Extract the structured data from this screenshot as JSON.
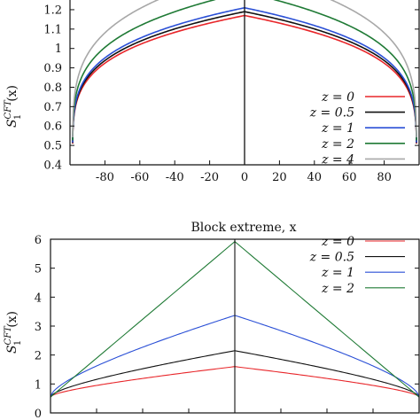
{
  "chart_data": [
    {
      "type": "line",
      "ylabel": {
        "base": "S",
        "sub": "1",
        "sup": "CFT",
        "arg": "(x)"
      },
      "xlabel": "Block extreme, x",
      "x_ticks": [
        -80,
        -60,
        -40,
        -20,
        0,
        20,
        40,
        60,
        80
      ],
      "y_ticks": [
        "0.4",
        "0.5",
        "0.6",
        "0.7",
        "0.8",
        "0.9",
        "1",
        "1.1",
        "1.2"
      ],
      "xlim": [
        -100,
        100
      ],
      "ylim": [
        0.4,
        1.25
      ],
      "legend_position": "bottom-right",
      "center_line_x": 0,
      "series": [
        {
          "name": "z = 0",
          "color": "#e8262a",
          "peak": 1.17
        },
        {
          "name": "z = 0.5",
          "color": "#111111",
          "peak": 1.19
        },
        {
          "name": "z = 1",
          "color": "#2a4fd6",
          "peak": 1.21
        },
        {
          "name": "z = 2",
          "color": "#1f7a35",
          "peak": 1.29
        },
        {
          "name": "z = 4",
          "color": "#a8a8a8",
          "peak": 1.4
        }
      ]
    },
    {
      "type": "line",
      "ylabel": {
        "base": "S",
        "sub": "1",
        "sup": "CFT",
        "arg": "(x)"
      },
      "xlabel": "",
      "y_ticks": [
        "0",
        "1",
        "2",
        "3",
        "4",
        "5",
        "6"
      ],
      "xlim": [
        -100,
        100
      ],
      "ylim": [
        0,
        6
      ],
      "legend_position": "top-right",
      "center_line_x": 0,
      "edge_value": 0.55,
      "series": [
        {
          "name": "z = 0",
          "color": "#e8262a",
          "peak": 1.6
        },
        {
          "name": "z = 0.5",
          "color": "#111111",
          "peak": 2.15
        },
        {
          "name": "z = 1",
          "color": "#2a4fd6",
          "peak": 3.37
        },
        {
          "name": "z = 2",
          "color": "#1f7a35",
          "peak": 5.92
        }
      ]
    }
  ]
}
